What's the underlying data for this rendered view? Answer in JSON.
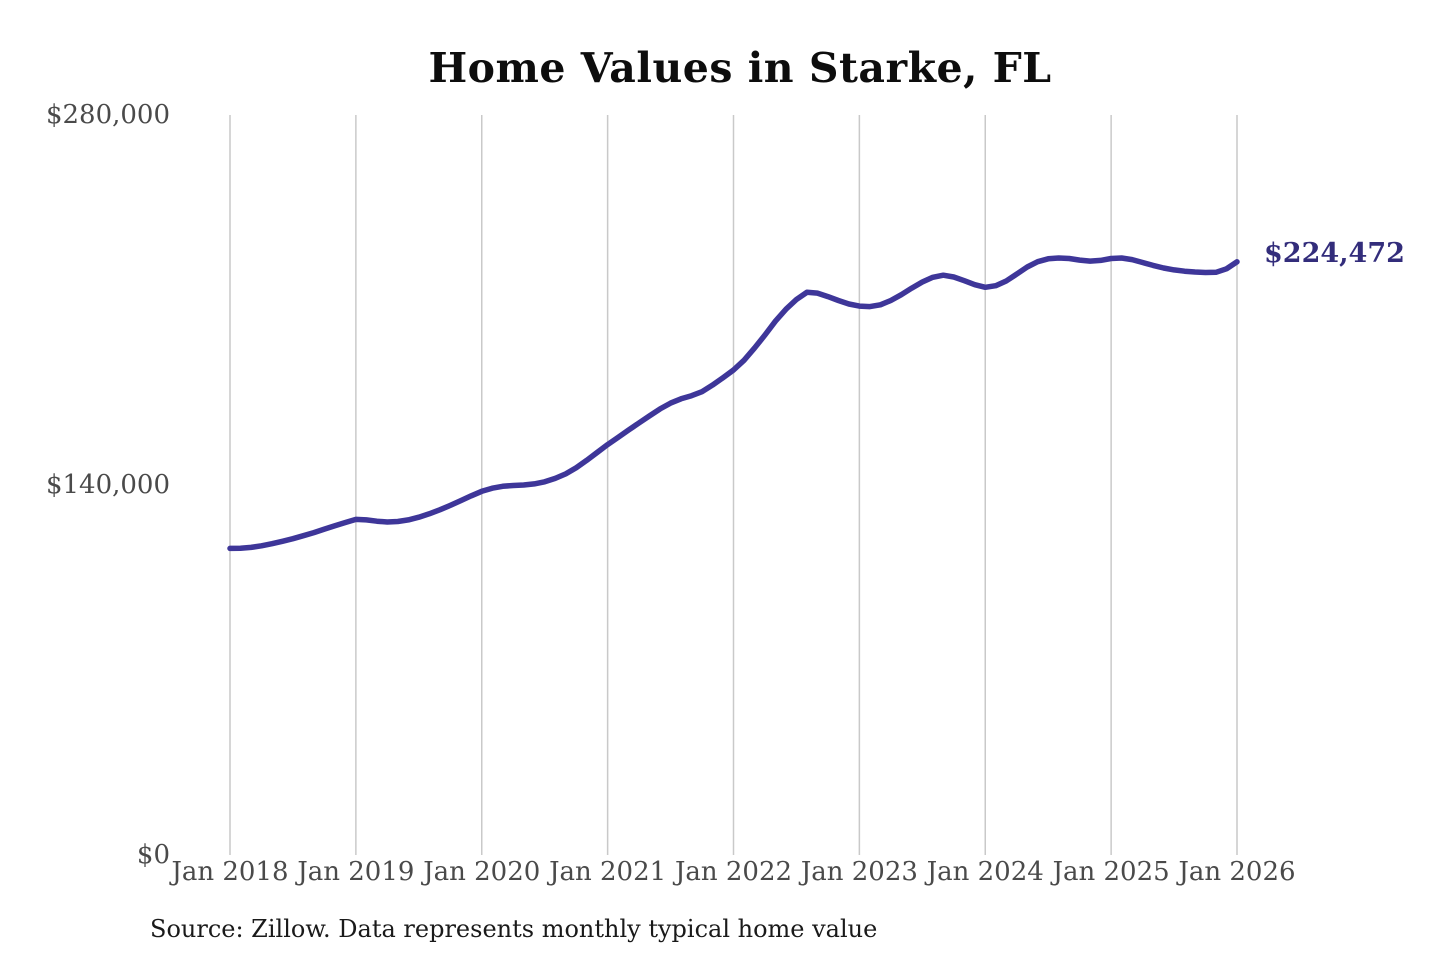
{
  "chart_data": {
    "type": "line",
    "title": "Home Values in Starke, FL",
    "source_note": "Source: Zillow. Data represents monthly typical home value",
    "end_label": "$224,472",
    "end_value": 224472,
    "xlabel": "",
    "ylabel": "",
    "ylim": [
      0,
      280000
    ],
    "grid": "vertical-only",
    "legend": "none",
    "line_color": "#3e3699",
    "end_label_color": "#332d7b",
    "grid_color": "#c9c9c9",
    "tick_color": "#4a4a4a",
    "y_ticks": [
      {
        "value": 0,
        "label": "$0"
      },
      {
        "value": 140000,
        "label": "$140,000"
      },
      {
        "value": 280000,
        "label": "$280,000"
      }
    ],
    "x_ticks": [
      {
        "month_index": 0,
        "label": "Jan 2018"
      },
      {
        "month_index": 12,
        "label": "Jan 2019"
      },
      {
        "month_index": 24,
        "label": "Jan 2020"
      },
      {
        "month_index": 36,
        "label": "Jan 2021"
      },
      {
        "month_index": 48,
        "label": "Jan 2022"
      },
      {
        "month_index": 60,
        "label": "Jan 2023"
      },
      {
        "month_index": 72,
        "label": "Jan 2024"
      },
      {
        "month_index": 84,
        "label": "Jan 2025"
      },
      {
        "month_index": 96,
        "label": "Jan 2026"
      }
    ],
    "series": [
      {
        "name": "Typical home value",
        "x_start": "2018-01",
        "x_interval": "month",
        "values": [
          116000,
          116100,
          116400,
          117000,
          117800,
          118700,
          119700,
          120800,
          122000,
          123300,
          124600,
          125800,
          127000,
          126800,
          126300,
          126000,
          126200,
          126800,
          127800,
          129100,
          130600,
          132300,
          134100,
          135900,
          137600,
          138800,
          139500,
          139800,
          140000,
          140400,
          141200,
          142500,
          144200,
          146500,
          149300,
          152300,
          155300,
          158000,
          160800,
          163500,
          166200,
          168800,
          171000,
          172600,
          173800,
          175300,
          177800,
          180600,
          183500,
          187200,
          191800,
          196800,
          202000,
          206500,
          210200,
          212900,
          212600,
          211300,
          209800,
          208500,
          207700,
          207500,
          208200,
          209800,
          212000,
          214500,
          216800,
          218600,
          219400,
          218700,
          217300,
          215800,
          214800,
          215400,
          217200,
          219800,
          222500,
          224500,
          225600,
          225900,
          225700,
          225100,
          224700,
          225000,
          225700,
          225900,
          225300,
          224200,
          223100,
          222100,
          221400,
          220900,
          220600,
          220400,
          220500,
          221800,
          224472
        ]
      }
    ]
  }
}
